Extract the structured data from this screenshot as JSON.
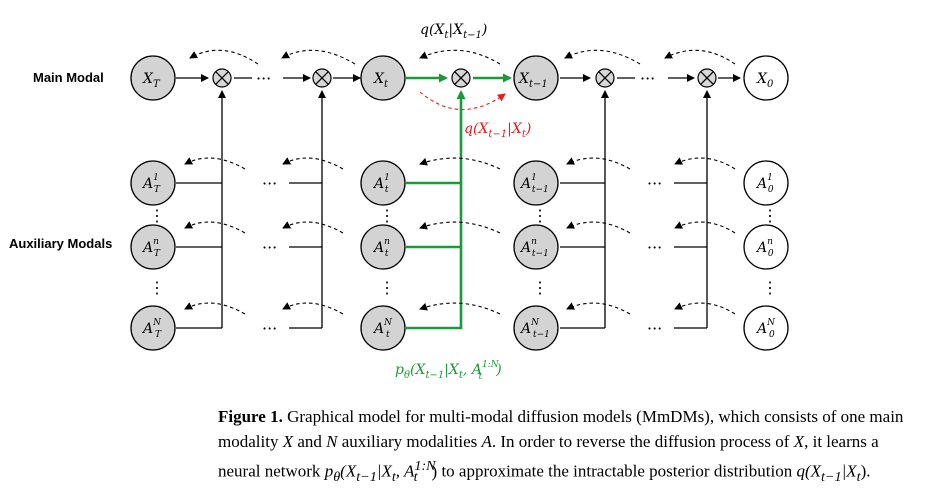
{
  "row_labels": {
    "main": "Main Modal",
    "auxiliary": "Auxiliary Modals"
  },
  "nodes": {
    "main": [
      {
        "id": "XT",
        "base": "X",
        "sub": "T",
        "sup": ""
      },
      {
        "id": "Xt",
        "base": "X",
        "sub": "t",
        "sup": ""
      },
      {
        "id": "Xt1",
        "base": "X",
        "sub": "t−1",
        "sup": ""
      },
      {
        "id": "X0",
        "base": "X",
        "sub": "0",
        "sup": ""
      }
    ],
    "aux_row1": [
      {
        "id": "AT1",
        "base": "A",
        "sub": "T",
        "sup": "1"
      },
      {
        "id": "At1",
        "base": "A",
        "sub": "t",
        "sup": "1"
      },
      {
        "id": "At11",
        "base": "A",
        "sub": "t−1",
        "sup": "1"
      },
      {
        "id": "A01",
        "base": "A",
        "sub": "0",
        "sup": "1"
      }
    ],
    "aux_rown": [
      {
        "id": "ATn",
        "base": "A",
        "sub": "T",
        "sup": "n"
      },
      {
        "id": "Atn",
        "base": "A",
        "sub": "t",
        "sup": "n"
      },
      {
        "id": "At1n",
        "base": "A",
        "sub": "t−1",
        "sup": "n"
      },
      {
        "id": "A0n",
        "base": "A",
        "sub": "0",
        "sup": "n"
      }
    ],
    "aux_rowN": [
      {
        "id": "ATN",
        "base": "A",
        "sub": "T",
        "sup": "N"
      },
      {
        "id": "AtN",
        "base": "A",
        "sub": "t",
        "sup": "N"
      },
      {
        "id": "At1N",
        "base": "A",
        "sub": "t−1",
        "sup": "N"
      },
      {
        "id": "A0N",
        "base": "A",
        "sub": "0",
        "sup": "N"
      }
    ]
  },
  "combine_symbol": "⊗",
  "ellipsis_h": "···",
  "ellipsis_v": "⋮",
  "labels": {
    "forward": {
      "base": "q(X",
      "sub1": "t",
      "mid": "|X",
      "sub2": "t−1",
      "end": ")"
    },
    "posterior": {
      "base": "q(X",
      "sub1": "t−1",
      "mid": "|X",
      "sub2": "t",
      "end": ")"
    },
    "reverse": {
      "p": "p",
      "theta": "θ",
      "base": "(X",
      "sub1": "t−1",
      "mid": "|X",
      "sub2": "t",
      "mid2": ", A",
      "sup3": "1:N",
      "sub3": "t",
      "end": ")"
    }
  },
  "colors": {
    "green": "#1a9a3a",
    "red": "#e02020",
    "node_fill": "#d3d3d3"
  },
  "caption": {
    "figure_label": "Figure 1.",
    "line1": "Graphical model for multi-modal diffusion models (MmDMs), which consists of one main",
    "line2a": "modality ",
    "var_X": "X",
    "line2b": " and ",
    "var_N": "N",
    "line2c": " auxiliary modalities ",
    "var_A": "A",
    "line2d": ". In order to reverse the diffusion process of ",
    "var_X2": "X",
    "line2e": ", it learns a",
    "line3a": "neural network ",
    "line3_p": "p",
    "line3_theta": "θ",
    "line3_expr": "(X",
    "line3_sub1": "t−1",
    "line3_mid": "|X",
    "line3_sub2": "t",
    "line3_comma": ", A",
    "line3_sup3": "1:N",
    "line3_sub3": "t",
    "line3_end": ")",
    "line3b": " to approximate the intractable posterior distribution ",
    "line3_q": "q(X",
    "line3_qsub1": "t−1",
    "line3_qmid": "|X",
    "line3_qsub2": "t",
    "line3_qend": ")."
  }
}
